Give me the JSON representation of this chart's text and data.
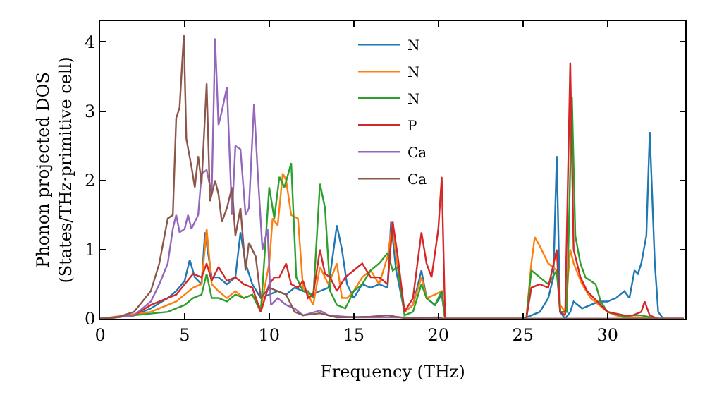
{
  "chart_data": {
    "type": "line",
    "xlabel": "Frequency (THz)",
    "ylabel": "Phonon projected DOS\n(States/THz·primitive cell)",
    "xlim": [
      0,
      34.6
    ],
    "ylim": [
      0,
      4.3
    ],
    "xticks": [
      0,
      5,
      10,
      15,
      20,
      25,
      30
    ],
    "yticks": [
      0,
      1,
      2,
      3,
      4
    ],
    "legend": "top center",
    "marker": "none",
    "line_style": "solid",
    "series": [
      {
        "name": "N",
        "color": "#1f77b4",
        "x": [
          0,
          2,
          3,
          4,
          4.5,
          5,
          5.3,
          5.6,
          6,
          6.2,
          6.6,
          7,
          7.5,
          8,
          8.3,
          8.6,
          9,
          9.5,
          10,
          10.5,
          11,
          11.5,
          12,
          12.5,
          13,
          13.5,
          14,
          14.3,
          14.6,
          15,
          15.5,
          16,
          16.5,
          17,
          17.2,
          17.5,
          18,
          18.5,
          19,
          19.3,
          19.8,
          20.2,
          20.4,
          25,
          25.5,
          26,
          26.5,
          26.8,
          27,
          27.2,
          27.5,
          27.8,
          28,
          28.5,
          29,
          29.5,
          30,
          30.5,
          31,
          31.3,
          31.6,
          31.8,
          32,
          32.3,
          32.5,
          32.8,
          33,
          33.3,
          34.5
        ],
        "values": [
          0,
          0.05,
          0.15,
          0.3,
          0.4,
          0.55,
          0.85,
          0.6,
          0.5,
          1.25,
          0.6,
          0.6,
          0.5,
          0.6,
          1.25,
          0.8,
          0.5,
          0.3,
          0.35,
          0.4,
          0.35,
          0.45,
          0.4,
          0.35,
          0.4,
          0.45,
          1.35,
          1.0,
          0.5,
          0.3,
          0.5,
          0.45,
          0.5,
          0.45,
          1.4,
          0.7,
          0.1,
          0.2,
          0.7,
          0.3,
          0.2,
          0.35,
          0,
          0,
          0.05,
          0.1,
          0.3,
          0.6,
          2.35,
          0.1,
          0,
          0.1,
          0.25,
          0.15,
          0.2,
          0.25,
          0.25,
          0.3,
          0.4,
          0.3,
          0.7,
          0.65,
          0.8,
          1.2,
          2.7,
          0.8,
          0.1,
          0,
          0
        ]
      },
      {
        "name": "N",
        "color": "#ff7f0e",
        "x": [
          0,
          3,
          4,
          4.5,
          5,
          5.5,
          6,
          6.3,
          6.6,
          7,
          7.5,
          8,
          8.5,
          9,
          9.5,
          10,
          10.2,
          10.5,
          10.8,
          11,
          11.3,
          11.7,
          12,
          12.3,
          12.6,
          13,
          13.5,
          14,
          14.3,
          14.6,
          15,
          15.5,
          16,
          16.5,
          17,
          17.3,
          17.5,
          18,
          18.5,
          19,
          19.3,
          19.8,
          20.2,
          20.4,
          25.2,
          25.5,
          25.7,
          26,
          26.5,
          27,
          27.2,
          27.5,
          27.8,
          28,
          28.5,
          29,
          29.5,
          30,
          30.5,
          31,
          32,
          33,
          34.5
        ],
        "values": [
          0,
          0.1,
          0.2,
          0.25,
          0.35,
          0.45,
          0.5,
          1.3,
          0.5,
          0.4,
          0.3,
          0.4,
          0.3,
          0.35,
          0.15,
          0.8,
          1.45,
          1.35,
          2.1,
          2.0,
          1.5,
          1.45,
          0.45,
          0.35,
          0.2,
          0.75,
          0.5,
          0.8,
          0.3,
          0.3,
          0.4,
          0.6,
          0.7,
          0.5,
          0.9,
          1.4,
          0.9,
          0.1,
          0.2,
          0.6,
          0.3,
          0.35,
          0.4,
          0,
          0,
          0.8,
          1.18,
          1.05,
          0.8,
          0.7,
          0.2,
          0.1,
          1.0,
          0.8,
          0.5,
          0.3,
          0.2,
          0.1,
          0.05,
          0.02,
          0.02,
          0,
          0
        ]
      },
      {
        "name": "N",
        "color": "#2ca02c",
        "x": [
          0,
          4,
          5,
          5.5,
          6,
          6.3,
          6.6,
          7,
          7.5,
          8,
          8.5,
          9,
          9.5,
          10,
          10.3,
          10.6,
          10.9,
          11.3,
          11.6,
          12,
          12.3,
          12.6,
          13,
          13.3,
          13.6,
          14,
          14.5,
          15,
          15.5,
          16,
          16.5,
          17,
          17.3,
          17.6,
          18,
          18.5,
          19,
          19.3,
          19.8,
          20.2,
          20.4,
          25.2,
          25.5,
          26,
          26.5,
          27,
          27.2,
          27.6,
          27.9,
          28.1,
          28.4,
          28.7,
          29,
          29.3,
          29.6,
          30,
          31,
          31.5,
          32,
          33,
          34.5
        ],
        "values": [
          0,
          0.1,
          0.2,
          0.3,
          0.35,
          0.65,
          0.3,
          0.3,
          0.25,
          0.35,
          0.3,
          0.35,
          0.1,
          1.9,
          1.45,
          2.05,
          1.9,
          2.25,
          0.6,
          0.4,
          0.4,
          0.3,
          1.95,
          1.6,
          0.4,
          0.2,
          0.15,
          0.4,
          0.5,
          0.7,
          0.8,
          0.95,
          0.7,
          0.75,
          0.05,
          0.1,
          0.5,
          0.3,
          0.2,
          0.4,
          0,
          0,
          0.7,
          0.6,
          0.5,
          0.7,
          0.1,
          0.1,
          3.2,
          1.2,
          0.8,
          0.6,
          0.55,
          0.5,
          0.25,
          0.1,
          0.03,
          0.05,
          0.05,
          0,
          0
        ]
      },
      {
        "name": "P",
        "color": "#d62728",
        "x": [
          0,
          2,
          3,
          4,
          4.5,
          5,
          5.5,
          6,
          6.3,
          6.6,
          7,
          7.5,
          8,
          8.5,
          9,
          9.5,
          10,
          10.3,
          10.6,
          11,
          11.3,
          11.7,
          12,
          12.3,
          12.6,
          13,
          13.3,
          13.6,
          14,
          14.5,
          15,
          15.5,
          16,
          16.5,
          17,
          17.3,
          17.6,
          18,
          18.5,
          19,
          19.3,
          19.6,
          20,
          20.2,
          20.4,
          25.2,
          25.5,
          26,
          26.5,
          27,
          27.2,
          27.5,
          27.8,
          28,
          28.4,
          28.8,
          29.2,
          29.6,
          30,
          31,
          31.5,
          32,
          32.2,
          32.5,
          33,
          34.5
        ],
        "values": [
          0,
          0.05,
          0.2,
          0.3,
          0.35,
          0.5,
          0.65,
          0.6,
          0.8,
          0.55,
          0.75,
          0.55,
          0.6,
          0.5,
          0.45,
          0.1,
          0.5,
          0.6,
          0.6,
          0.8,
          0.5,
          0.45,
          0.55,
          0.3,
          0.35,
          1.0,
          0.65,
          0.6,
          0.4,
          0.6,
          0.7,
          0.8,
          0.6,
          0.6,
          0.5,
          1.4,
          0.9,
          0.1,
          0.3,
          1.25,
          0.8,
          0.6,
          1.3,
          2.05,
          0,
          0,
          0.45,
          0.5,
          0.45,
          1.0,
          0.1,
          0.05,
          3.7,
          1.0,
          0.6,
          0.4,
          0.3,
          0.2,
          0.1,
          0.05,
          0.05,
          0.1,
          0.25,
          0.05,
          0,
          0
        ]
      },
      {
        "name": "Ca",
        "color": "#9467bd",
        "x": [
          0,
          2,
          3,
          3.5,
          4,
          4.3,
          4.5,
          4.7,
          5,
          5.2,
          5.4,
          5.8,
          6,
          6.3,
          6.6,
          6.8,
          7,
          7.2,
          7.5,
          7.8,
          8,
          8.3,
          8.6,
          8.8,
          9.1,
          9.3,
          9.6,
          9.9,
          10.1,
          10.5,
          11,
          11.5,
          12,
          13,
          13.5,
          15,
          18,
          20.3,
          34.5
        ],
        "values": [
          0,
          0.05,
          0.25,
          0.5,
          0.8,
          1.3,
          1.5,
          1.25,
          1.3,
          1.5,
          1.3,
          1.5,
          2.1,
          2.15,
          1.8,
          4.05,
          2.8,
          3.0,
          3.35,
          1.5,
          2.5,
          2.45,
          1.5,
          1.6,
          3.1,
          2.2,
          1.0,
          1.3,
          0.2,
          0.3,
          0.2,
          0.15,
          0.05,
          0.12,
          0.05,
          0.02,
          0.02,
          0,
          0
        ]
      },
      {
        "name": "Ca",
        "color": "#8c564b",
        "x": [
          0,
          1,
          2,
          3,
          3.5,
          4,
          4.3,
          4.5,
          4.7,
          4.95,
          5.1,
          5.4,
          5.6,
          5.8,
          6,
          6.3,
          6.5,
          6.8,
          7,
          7.2,
          7.5,
          7.8,
          8,
          8.3,
          8.6,
          8.8,
          9.2,
          9.5,
          10,
          10.5,
          11,
          11.5,
          12,
          13,
          14,
          16,
          17,
          18,
          20,
          20.3,
          34.5
        ],
        "values": [
          0,
          0.02,
          0.1,
          0.4,
          0.8,
          1.45,
          1.5,
          2.9,
          3.05,
          4.1,
          2.6,
          2.2,
          1.9,
          2.35,
          1.95,
          3.4,
          1.7,
          2.0,
          1.8,
          1.4,
          1.6,
          1.9,
          1.2,
          1.6,
          0.7,
          1.1,
          0.9,
          0.3,
          0.45,
          0.4,
          0.35,
          0.1,
          0.05,
          0.08,
          0.02,
          0.03,
          0.05,
          0.01,
          0.02,
          0,
          0
        ]
      }
    ]
  }
}
